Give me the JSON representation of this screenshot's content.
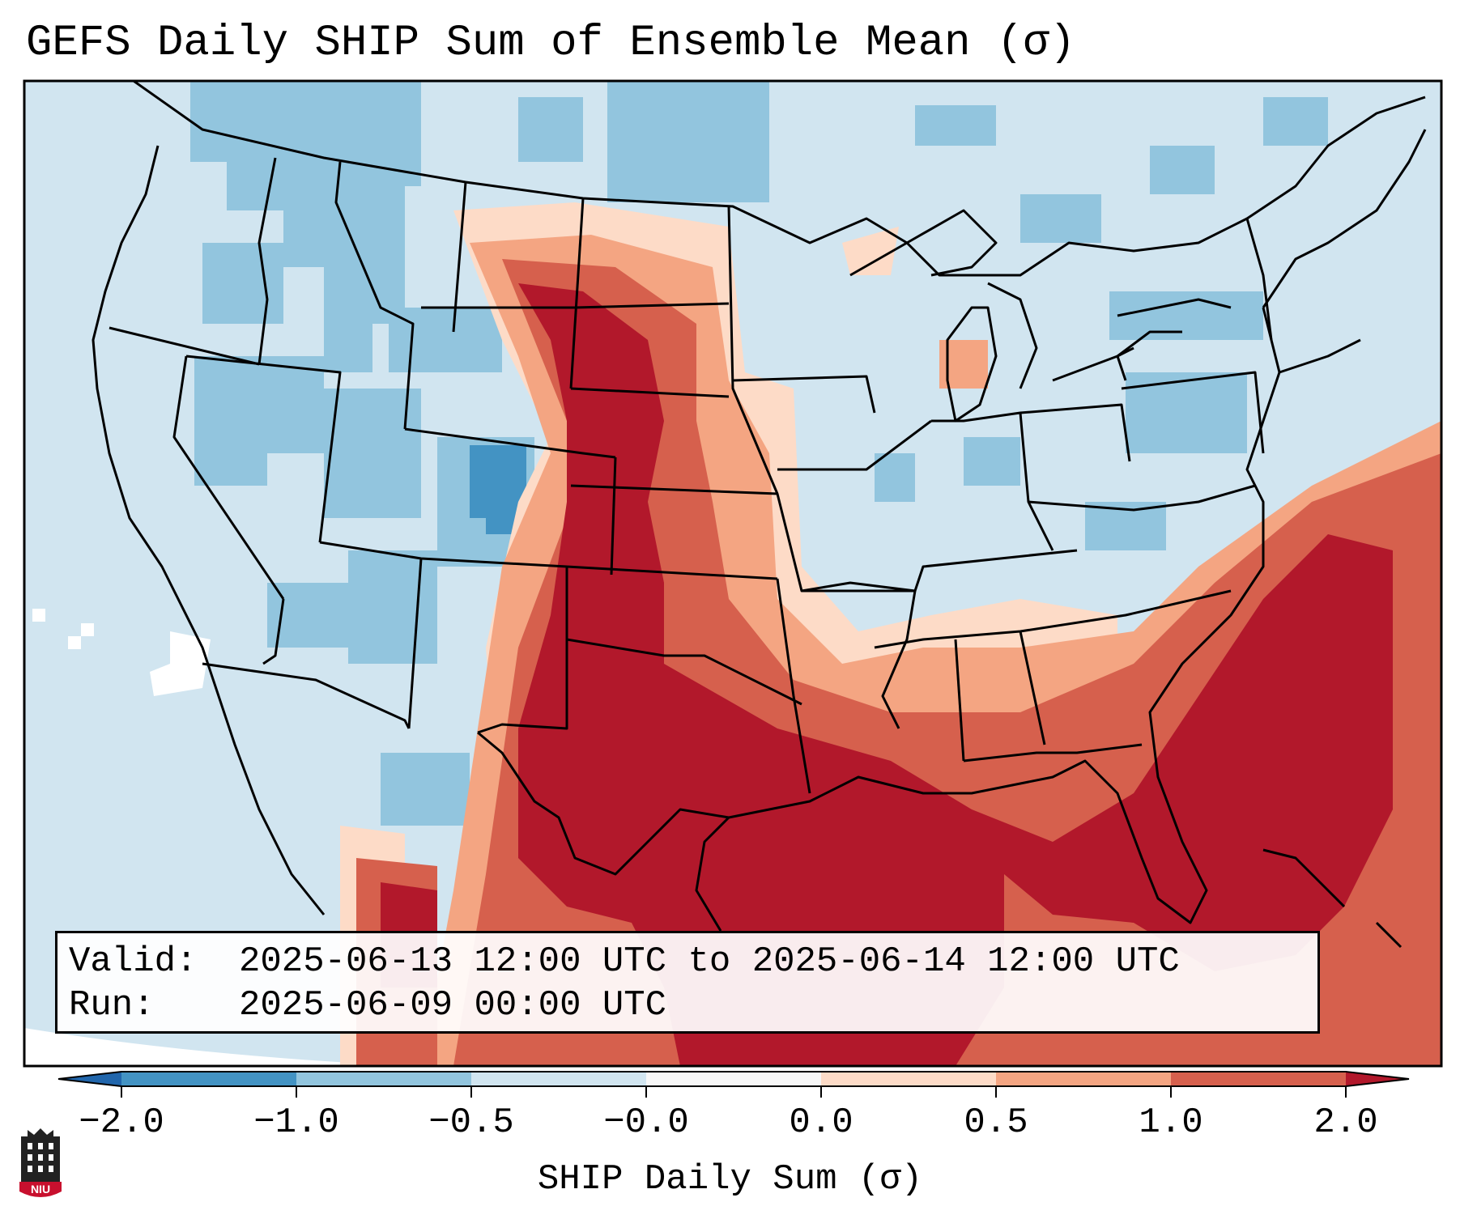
{
  "title": "GEFS Daily SHIP Sum of Ensemble Mean (σ)",
  "map": {
    "region": "Continental United States",
    "variable": "SHIP daily sum, ensemble mean anomaly (sigma)",
    "colors": {
      "ocean_background": "#d1e5f0",
      "land_border": "#000000",
      "frame": "#000000"
    }
  },
  "info": {
    "valid_label": "Valid:",
    "valid_value": "2025-06-13 12:00 UTC to 2025-06-14 12:00 UTC",
    "run_label": "Run:",
    "run_value": "2025-06-09 00:00 UTC"
  },
  "colorbar": {
    "label": "SHIP Daily Sum (σ)",
    "ticks": [
      "−2.0",
      "−1.0",
      "−0.5",
      "−0.0",
      "0.0",
      "0.5",
      "1.0",
      "2.0"
    ],
    "bins": [
      {
        "from": "<-2.0",
        "color": "#2166ac"
      },
      {
        "from": "-2.0",
        "to": "-1.0",
        "color": "#4393c3"
      },
      {
        "from": "-1.0",
        "to": "-0.5",
        "color": "#92c5de"
      },
      {
        "from": "-0.5",
        "to": "-0.0",
        "color": "#d1e5f0"
      },
      {
        "from": "-0.0",
        "to": "0.0",
        "color": "#f7f7f7"
      },
      {
        "from": "0.0",
        "to": "0.5",
        "color": "#fddbc7"
      },
      {
        "from": "0.5",
        "to": "1.0",
        "color": "#f4a582"
      },
      {
        "from": "1.0",
        "to": "2.0",
        "color": "#d6604d"
      },
      {
        "from": ">2.0",
        "color": "#b2182b"
      }
    ]
  },
  "logo": {
    "text": "NIU",
    "colors": {
      "shield": "#c8102e",
      "tower": "#222222"
    }
  }
}
